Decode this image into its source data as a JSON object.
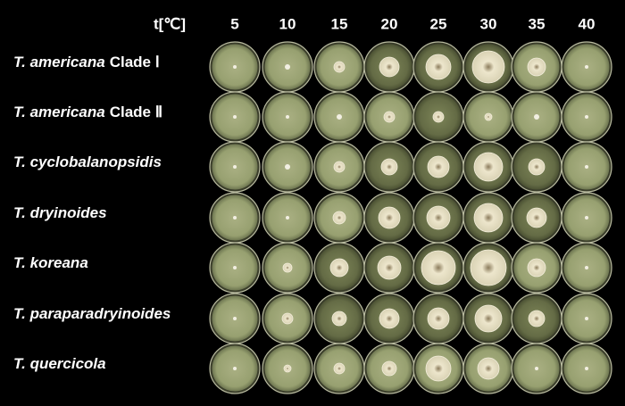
{
  "header": {
    "label": "t[℃]",
    "temperatures": [
      "5",
      "10",
      "15",
      "20",
      "25",
      "30",
      "35",
      "40"
    ]
  },
  "rows": [
    {
      "species": "T. americana",
      "clade": "Clade Ⅰ"
    },
    {
      "species": "T. americana",
      "clade": "Clade Ⅱ"
    },
    {
      "species": "T. cyclobalanopsidis"
    },
    {
      "species": "T. dryinoides"
    },
    {
      "species": "T. koreana"
    },
    {
      "species": "T. paraparadryinoides"
    },
    {
      "species": "T. quercicola"
    }
  ]
}
